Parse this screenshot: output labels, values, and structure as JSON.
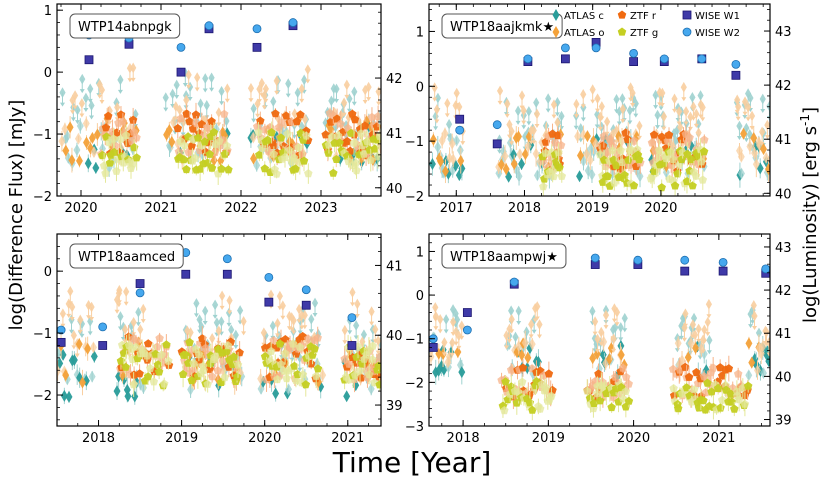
{
  "figure": {
    "xlabel": "Time [Year]",
    "ylabel_left": "log(Difference Flux) [mJy]",
    "ylabel_right": "log(Luminosity) [erg s^-1]"
  },
  "legend": {
    "entries": [
      {
        "label": "ATLAS c",
        "marker": "thin-diamond",
        "color": "#2a9d9a"
      },
      {
        "label": "ATLAS o",
        "marker": "thin-diamond",
        "color": "#f4a23a"
      },
      {
        "label": "ZTF r",
        "marker": "pentagon",
        "color": "#f06a10"
      },
      {
        "label": "ZTF g",
        "marker": "pentagon",
        "color": "#c5cf22"
      },
      {
        "label": "WISE W1",
        "marker": "square",
        "color": "#3f3aa8"
      },
      {
        "label": "WISE W2",
        "marker": "circle",
        "color": "#46a8ee"
      }
    ]
  },
  "chart_data": [
    {
      "type": "scatter",
      "title": "WTP14abnpgk",
      "xlim": [
        2019.7,
        2023.75
      ],
      "ylim": [
        -2.0,
        1.1
      ],
      "xticks": [
        2020,
        2021,
        2022,
        2023
      ],
      "yticks": [
        -2,
        -1,
        0,
        1
      ],
      "ylim_right": [
        39.85,
        43.35
      ],
      "yticks_right": [
        40,
        41,
        42
      ],
      "series": [
        {
          "name": "WISE W1",
          "x": [
            2020.1,
            2020.6,
            2021.25,
            2021.6,
            2022.2,
            2022.65
          ],
          "y": [
            0.2,
            0.45,
            0.0,
            0.7,
            0.4,
            0.75
          ]
        },
        {
          "name": "WISE W2",
          "x": [
            2020.1,
            2020.6,
            2021.25,
            2021.6,
            2022.2,
            2022.65
          ],
          "y": [
            0.6,
            0.55,
            0.4,
            0.75,
            0.7,
            0.8
          ]
        },
        {
          "name": "ATLAS c",
          "seasons": [
            [
              2019.75,
              2020.7
            ],
            [
              2021.05,
              2021.85
            ],
            [
              2022.1,
              2022.85
            ],
            [
              2023.05,
              2023.75
            ]
          ],
          "level": -1.2
        },
        {
          "name": "ATLAS o",
          "seasons": [
            [
              2019.75,
              2020.7
            ],
            [
              2021.05,
              2021.85
            ],
            [
              2022.1,
              2022.85
            ],
            [
              2023.05,
              2023.75
            ]
          ],
          "level": -1.1
        },
        {
          "name": "ZTF r",
          "seasons": [
            [
              2020.25,
              2020.7
            ],
            [
              2021.2,
              2021.85
            ],
            [
              2022.2,
              2022.85
            ],
            [
              2023.05,
              2023.75
            ]
          ],
          "level": -1.0
        },
        {
          "name": "ZTF g",
          "seasons": [
            [
              2020.25,
              2020.7
            ],
            [
              2021.2,
              2021.85
            ],
            [
              2022.2,
              2022.85
            ],
            [
              2023.05,
              2023.75
            ]
          ],
          "level": -1.3
        }
      ]
    },
    {
      "type": "scatter",
      "title": "WTP18aajkmk★",
      "xlim": [
        2016.6,
        2021.6
      ],
      "ylim": [
        -2.0,
        1.5
      ],
      "xticks": [
        2017,
        2018,
        2019,
        2020
      ],
      "yticks": [
        -2,
        -1,
        0,
        1
      ],
      "ylim_right": [
        39.95,
        43.5
      ],
      "yticks_right": [
        40,
        41,
        42,
        43
      ],
      "series": [
        {
          "name": "WISE W1",
          "x": [
            2017.05,
            2017.6,
            2018.05,
            2018.6,
            2019.05,
            2019.6,
            2020.05,
            2020.6,
            2021.1
          ],
          "y": [
            -0.6,
            -1.05,
            0.45,
            0.5,
            0.8,
            0.45,
            0.45,
            0.5,
            0.2
          ]
        },
        {
          "name": "WISE W2",
          "x": [
            2017.05,
            2017.6,
            2018.05,
            2018.6,
            2019.05,
            2019.6,
            2020.05,
            2020.6,
            2021.1
          ],
          "y": [
            -0.8,
            -0.7,
            0.5,
            0.7,
            0.7,
            0.6,
            0.5,
            0.5,
            0.4
          ]
        },
        {
          "name": "ATLAS c",
          "seasons": [
            [
              2016.65,
              2017.1
            ],
            [
              2017.6,
              2018.55
            ],
            [
              2018.75,
              2019.7
            ],
            [
              2019.85,
              2020.65
            ],
            [
              2021.1,
              2021.6
            ]
          ],
          "level": -1.3
        },
        {
          "name": "ATLAS o",
          "seasons": [
            [
              2016.65,
              2017.1
            ],
            [
              2017.6,
              2018.55
            ],
            [
              2018.75,
              2019.7
            ],
            [
              2019.85,
              2020.65
            ],
            [
              2021.1,
              2021.6
            ]
          ],
          "level": -1.2
        },
        {
          "name": "ZTF r",
          "seasons": [
            [
              2018.25,
              2018.55
            ],
            [
              2019.1,
              2019.7
            ],
            [
              2019.85,
              2020.65
            ]
          ],
          "level": -1.2
        },
        {
          "name": "ZTF g",
          "seasons": [
            [
              2018.25,
              2018.55
            ],
            [
              2019.1,
              2019.7
            ],
            [
              2019.85,
              2020.65
            ]
          ],
          "level": -1.5
        }
      ]
    },
    {
      "type": "scatter",
      "title": "WTP18aamced",
      "xlim": [
        2017.5,
        2021.4
      ],
      "ylim": [
        -2.5,
        0.6
      ],
      "xticks": [
        2018,
        2019,
        2020,
        2021
      ],
      "yticks": [
        -2,
        -1,
        0
      ],
      "ylim_right": [
        38.7,
        41.45
      ],
      "yticks_right": [
        39,
        40,
        41
      ],
      "series": [
        {
          "name": "WISE W1",
          "x": [
            2017.55,
            2018.05,
            2018.5,
            2019.05,
            2019.55,
            2020.05,
            2020.5,
            2021.05
          ],
          "y": [
            -1.15,
            -1.2,
            -0.2,
            -0.05,
            -0.05,
            -0.5,
            -0.55,
            -1.2
          ]
        },
        {
          "name": "WISE W2",
          "x": [
            2017.55,
            2018.05,
            2018.5,
            2019.05,
            2019.55,
            2020.05,
            2020.5,
            2021.05
          ],
          "y": [
            -0.95,
            -0.9,
            -0.35,
            0.3,
            0.2,
            -0.1,
            -0.3,
            -0.75
          ]
        },
        {
          "name": "ATLAS c",
          "seasons": [
            [
              2017.5,
              2017.95
            ],
            [
              2018.2,
              2018.55
            ],
            [
              2019.05,
              2019.75
            ],
            [
              2019.95,
              2020.7
            ],
            [
              2020.95,
              2021.4
            ]
          ],
          "level": -1.7
        },
        {
          "name": "ATLAS o",
          "seasons": [
            [
              2017.5,
              2017.95
            ],
            [
              2018.2,
              2018.55
            ],
            [
              2019.05,
              2019.75
            ],
            [
              2019.95,
              2020.7
            ],
            [
              2020.95,
              2021.4
            ]
          ],
          "level": -1.5
        },
        {
          "name": "ZTF r",
          "seasons": [
            [
              2018.25,
              2018.85
            ],
            [
              2019.0,
              2019.7
            ],
            [
              2020.0,
              2020.65
            ],
            [
              2020.95,
              2021.4
            ]
          ],
          "level": -1.4
        },
        {
          "name": "ZTF g",
          "seasons": [
            [
              2018.25,
              2018.85
            ],
            [
              2019.0,
              2019.7
            ],
            [
              2020.0,
              2020.65
            ],
            [
              2020.95,
              2021.4
            ]
          ],
          "level": -1.5
        }
      ]
    },
    {
      "type": "scatter",
      "title": "WTP18aampwj★",
      "xlim": [
        2017.6,
        2021.6
      ],
      "ylim": [
        -3.0,
        1.4
      ],
      "xticks": [
        2018,
        2019,
        2020,
        2021
      ],
      "yticks": [
        -3,
        -2,
        -1,
        0,
        1
      ],
      "ylim_right": [
        38.85,
        43.3
      ],
      "yticks_right": [
        39,
        40,
        41,
        42,
        43
      ],
      "series": [
        {
          "name": "WISE W1",
          "x": [
            2017.65,
            2018.05,
            2018.6,
            2019.05,
            2019.55,
            2020.05,
            2020.6,
            2021.05,
            2021.55
          ],
          "y": [
            -1.2,
            -0.4,
            0.25,
            0.8,
            0.7,
            0.7,
            0.55,
            0.55,
            0.5
          ]
        },
        {
          "name": "WISE W2",
          "x": [
            2017.65,
            2018.05,
            2018.6,
            2019.05,
            2019.55,
            2020.05,
            2020.6,
            2021.05,
            2021.55
          ],
          "y": [
            -1.0,
            -0.8,
            0.3,
            0.85,
            0.85,
            0.8,
            0.8,
            0.75,
            0.6
          ]
        },
        {
          "name": "ATLAS c",
          "seasons": [
            [
              2017.6,
              2018.0
            ],
            [
              2018.5,
              2018.9
            ],
            [
              2019.5,
              2019.9
            ],
            [
              2020.5,
              2020.9
            ],
            [
              2021.35,
              2021.6
            ]
          ],
          "level": -1.5
        },
        {
          "name": "ATLAS o",
          "seasons": [
            [
              2017.6,
              2018.0
            ],
            [
              2018.5,
              2018.9
            ],
            [
              2019.5,
              2019.9
            ],
            [
              2020.5,
              2020.9
            ],
            [
              2021.35,
              2021.6
            ]
          ],
          "level": -1.4
        },
        {
          "name": "ZTF r",
          "seasons": [
            [
              2018.45,
              2019.05
            ],
            [
              2019.45,
              2019.95
            ],
            [
              2020.45,
              2021.35
            ]
          ],
          "level": -2.0
        },
        {
          "name": "ZTF g",
          "seasons": [
            [
              2018.45,
              2019.05
            ],
            [
              2019.45,
              2019.95
            ],
            [
              2020.45,
              2021.35
            ]
          ],
          "level": -2.3
        }
      ]
    }
  ]
}
